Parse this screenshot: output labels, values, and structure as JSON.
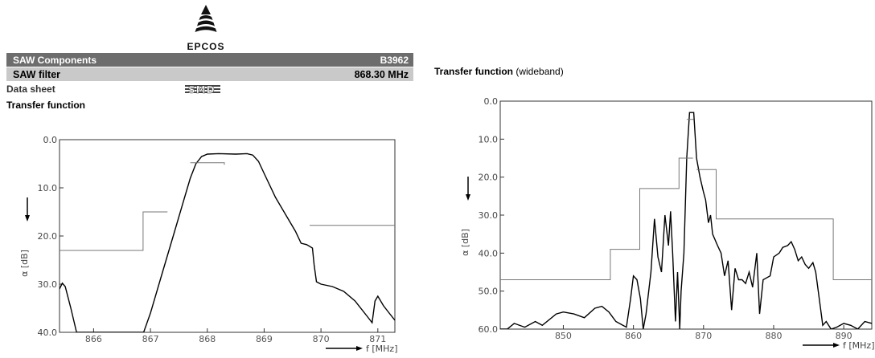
{
  "header": {
    "brand": "EPCOS",
    "bar1_left": "SAW Components",
    "bar1_right": "B3962",
    "bar2_left": "SAW filter",
    "bar2_right": "868.30 MHz",
    "datasheet": "Data sheet",
    "package_logo_text": "SMD",
    "left_title": "Transfer function",
    "right_title_bold": "Transfer function",
    "right_title_rest": " (wideband)"
  },
  "colors": {
    "bar_dark": "#6d6d6d",
    "bar_light": "#c9c9c9",
    "curve": "#000000",
    "mask": "#777777"
  },
  "chart_data": [
    {
      "type": "line",
      "title": "Transfer function",
      "xlabel": "f [MHz]",
      "ylabel": "α [dB]",
      "xlim": [
        865.4,
        871.3
      ],
      "ylim": [
        40.0,
        0.0
      ],
      "y_inverted": true,
      "xticks": [
        "866",
        "867",
        "868",
        "869",
        "870",
        "871"
      ],
      "yticks": [
        "0.0",
        "10.0",
        "20.0",
        "30.0",
        "40.0"
      ],
      "series": [
        {
          "role": "attenuation curve",
          "points": [
            [
              865.4,
              31
            ],
            [
              865.45,
              29.8
            ],
            [
              865.5,
              30.5
            ],
            [
              865.6,
              35
            ],
            [
              865.7,
              40
            ],
            [
              866.88,
              40
            ],
            [
              867.0,
              36
            ],
            [
              867.2,
              28
            ],
            [
              867.4,
              20
            ],
            [
              867.6,
              12
            ],
            [
              867.7,
              8
            ],
            [
              867.8,
              5
            ],
            [
              867.9,
              3.5
            ],
            [
              868.0,
              3.0
            ],
            [
              868.2,
              2.9
            ],
            [
              868.5,
              3.0
            ],
            [
              868.7,
              2.9
            ],
            [
              868.8,
              3.2
            ],
            [
              868.9,
              4.5
            ],
            [
              869.0,
              7
            ],
            [
              869.2,
              12
            ],
            [
              869.4,
              16
            ],
            [
              869.55,
              19
            ],
            [
              869.65,
              21.5
            ],
            [
              869.75,
              21.8
            ],
            [
              869.85,
              22.5
            ],
            [
              869.88,
              26
            ],
            [
              869.92,
              29.5
            ],
            [
              870.0,
              30
            ],
            [
              870.2,
              30.5
            ],
            [
              870.4,
              31.5
            ],
            [
              870.6,
              33.5
            ],
            [
              870.8,
              36.5
            ],
            [
              870.9,
              38
            ],
            [
              870.95,
              33.5
            ],
            [
              871.0,
              32.5
            ],
            [
              871.1,
              34.5
            ],
            [
              871.2,
              36
            ],
            [
              871.3,
              37.5
            ]
          ]
        },
        {
          "role": "passband mask",
          "points": [
            [
              867.7,
              4.8
            ],
            [
              868.3,
              4.8
            ],
            [
              868.3,
              5.2
            ]
          ]
        },
        {
          "role": "stopband mask",
          "segments": [
            [
              [
                865.4,
                23
              ],
              [
                866.87,
                23
              ],
              [
                866.87,
                15
              ],
              [
                867.3,
                15
              ]
            ],
            [
              [
                869.8,
                17.8
              ],
              [
                871.3,
                17.8
              ]
            ]
          ]
        }
      ]
    },
    {
      "type": "line",
      "title": "Transfer function (wideband)",
      "xlabel": "f [MHz]",
      "ylabel": "α [dB]",
      "xlim": [
        841,
        894
      ],
      "ylim": [
        60.0,
        0.0
      ],
      "y_inverted": true,
      "xticks": [
        "850",
        "860",
        "870",
        "880",
        "890"
      ],
      "yticks": [
        "0.0",
        "10.0",
        "20.0",
        "30.0",
        "40.0",
        "50.0",
        "60.0"
      ],
      "series": [
        {
          "role": "attenuation curve",
          "points": [
            [
              841,
              60
            ],
            [
              842,
              60
            ],
            [
              843,
              58.5
            ],
            [
              844.5,
              59.5
            ],
            [
              846,
              58
            ],
            [
              847,
              59
            ],
            [
              849,
              56
            ],
            [
              850,
              55.5
            ],
            [
              851.5,
              56
            ],
            [
              853,
              57
            ],
            [
              854.5,
              54.5
            ],
            [
              855.5,
              54
            ],
            [
              856.5,
              55.5
            ],
            [
              857.5,
              58
            ],
            [
              858.5,
              59
            ],
            [
              859,
              59.5
            ],
            [
              859.6,
              52
            ],
            [
              860,
              46
            ],
            [
              860.5,
              47
            ],
            [
              861,
              52
            ],
            [
              861.4,
              60
            ],
            [
              861.8,
              56
            ],
            [
              862.5,
              45
            ],
            [
              863,
              31
            ],
            [
              863.5,
              41
            ],
            [
              864,
              45
            ],
            [
              864.5,
              30
            ],
            [
              865,
              38
            ],
            [
              865.3,
              29
            ],
            [
              865.6,
              40
            ],
            [
              866,
              58
            ],
            [
              866.3,
              45
            ],
            [
              866.6,
              60
            ],
            [
              866.8,
              50
            ],
            [
              867.2,
              40
            ],
            [
              867.6,
              15
            ],
            [
              868,
              3
            ],
            [
              868.6,
              3
            ],
            [
              869,
              15
            ],
            [
              869.5,
              20
            ],
            [
              870,
              24
            ],
            [
              870.3,
              26
            ],
            [
              870.7,
              32
            ],
            [
              871,
              30
            ],
            [
              871.3,
              35
            ],
            [
              872,
              38
            ],
            [
              872.5,
              40
            ],
            [
              873,
              46
            ],
            [
              873.5,
              42
            ],
            [
              874,
              55
            ],
            [
              874.5,
              44
            ],
            [
              875,
              47
            ],
            [
              875.5,
              47
            ],
            [
              876,
              48
            ],
            [
              876.5,
              45
            ],
            [
              877,
              49
            ],
            [
              877.6,
              40
            ],
            [
              878,
              56
            ],
            [
              878.5,
              47
            ],
            [
              879.5,
              46
            ],
            [
              880,
              41
            ],
            [
              880.8,
              40
            ],
            [
              881.3,
              38.5
            ],
            [
              882,
              38
            ],
            [
              882.5,
              37
            ],
            [
              883,
              39
            ],
            [
              883.5,
              42
            ],
            [
              884,
              41
            ],
            [
              884.5,
              43
            ],
            [
              885,
              44
            ],
            [
              885.6,
              42.5
            ],
            [
              886,
              45
            ],
            [
              886.8,
              56
            ],
            [
              887,
              59
            ],
            [
              887.5,
              58
            ],
            [
              888.2,
              60
            ],
            [
              889,
              59.5
            ],
            [
              890,
              58.5
            ],
            [
              891,
              59
            ],
            [
              892,
              60
            ],
            [
              893,
              58
            ],
            [
              894,
              58.5
            ]
          ]
        },
        {
          "role": "passband mask",
          "points": [
            [
              867.6,
              4.8
            ],
            [
              868.6,
              4.8
            ]
          ]
        },
        {
          "role": "stopband mask",
          "segments": [
            [
              [
                841,
                47
              ],
              [
                856.7,
                47
              ],
              [
                856.7,
                39
              ],
              [
                860.9,
                39
              ],
              [
                860.9,
                23
              ],
              [
                866.5,
                23
              ],
              [
                866.5,
                15
              ],
              [
                868.5,
                15
              ]
            ],
            [
              [
                869,
                18
              ],
              [
                871.8,
                18
              ],
              [
                871.8,
                31
              ],
              [
                888.5,
                31
              ],
              [
                888.5,
                47
              ],
              [
                894,
                47
              ]
            ]
          ]
        }
      ]
    }
  ]
}
